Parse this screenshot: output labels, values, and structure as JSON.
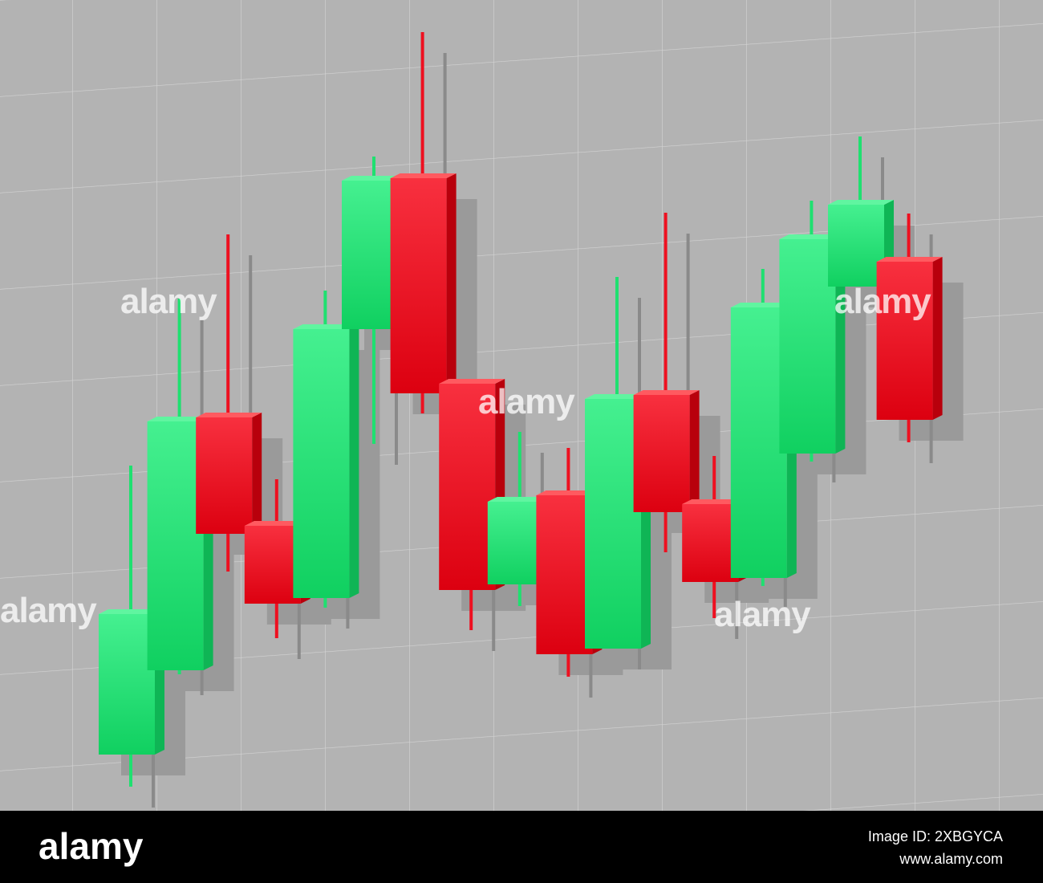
{
  "chart_data": {
    "type": "candlestick",
    "categories": [
      null,
      null,
      null,
      null,
      null,
      null,
      null,
      null,
      null,
      null,
      null,
      null,
      null,
      null,
      null,
      null,
      null
    ],
    "open": [
      6,
      16.5,
      48,
      34.5,
      25.5,
      59,
      77.8,
      52.2,
      27.2,
      38.3,
      19.2,
      50.8,
      37.2,
      28,
      43.5,
      64.3,
      67.4
    ],
    "high": [
      42,
      62.8,
      70.8,
      40.3,
      63.8,
      80.5,
      96,
      52.2,
      46.2,
      44.2,
      65.5,
      73.5,
      43.2,
      66.5,
      75,
      83,
      73.4
    ],
    "low": [
      2,
      16,
      28.8,
      20.5,
      24.3,
      44.7,
      48.5,
      21.5,
      24.5,
      15.7,
      19.2,
      31.2,
      23,
      27,
      42.5,
      64.3,
      44.9
    ],
    "close": [
      23.5,
      47.5,
      33.5,
      24.8,
      59,
      77.5,
      51,
      26.5,
      37.5,
      18.5,
      50.3,
      36.2,
      27.5,
      61.7,
      70.2,
      74.5,
      47.7
    ],
    "up_color": "#1fe070",
    "down_color": "#ee1020",
    "ylim": [
      0,
      100
    ],
    "grid": true
  },
  "watermark": {
    "logo": "alamy",
    "image_id": "Image ID: 2XBGYCA",
    "site": "www.alamy.com"
  }
}
